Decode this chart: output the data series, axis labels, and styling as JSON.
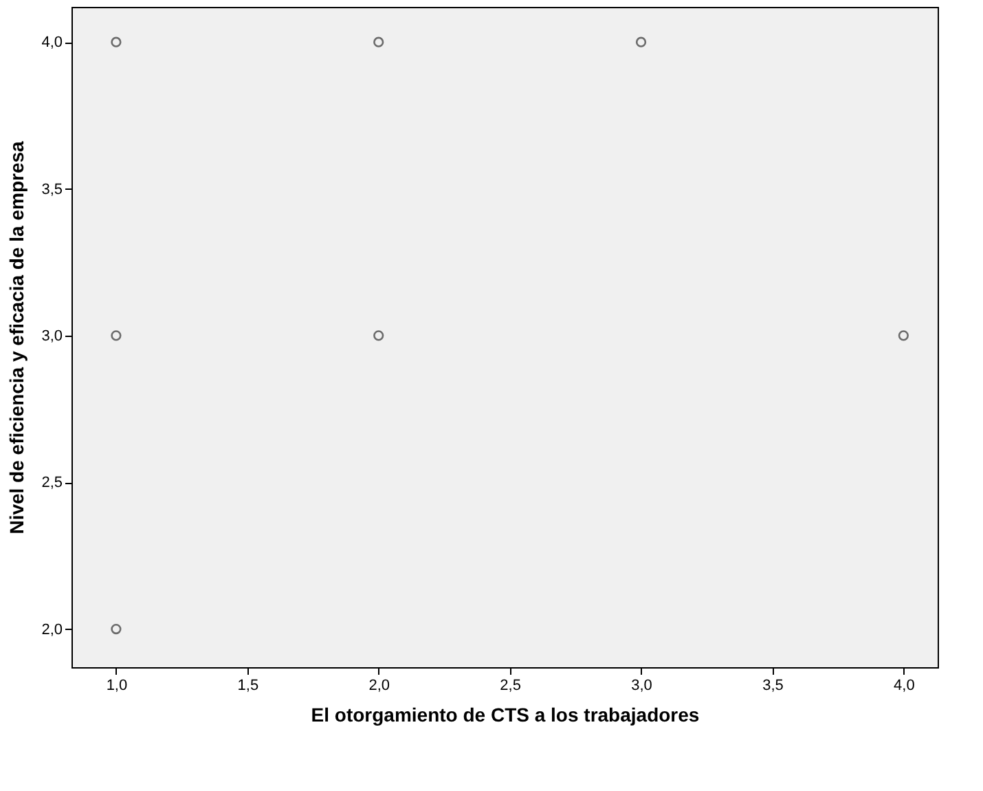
{
  "chart_data": {
    "type": "scatter",
    "xlabel": "El otorgamiento de CTS a los trabajadores",
    "ylabel": "Nivel de eficiencia y eficacia de la empresa",
    "x": [
      1,
      2,
      3,
      1,
      2,
      4,
      1
    ],
    "series": [
      {
        "color": "#333333",
        "values": [
          4,
          4,
          4,
          3,
          3,
          3,
          2
        ]
      }
    ],
    "marker": "circle",
    "grid": false,
    "xlim": [
      0.83,
      4.13
    ],
    "ylim": [
      1.87,
      4.12
    ],
    "xticks": [
      {
        "value": 1,
        "label": "1,0"
      },
      {
        "value": 1.5,
        "label": "1,5"
      },
      {
        "value": 2,
        "label": "2,0"
      },
      {
        "value": 2.5,
        "label": "2,5"
      },
      {
        "value": 3,
        "label": "3,0"
      },
      {
        "value": 3.5,
        "label": "3,5"
      },
      {
        "value": 4,
        "label": "4,0"
      }
    ],
    "yticks": [
      {
        "value": 2,
        "label": "2,0"
      },
      {
        "value": 2.5,
        "label": "2,5"
      },
      {
        "value": 3,
        "label": "3,0"
      },
      {
        "value": 3.5,
        "label": "3,5"
      },
      {
        "value": 4,
        "label": "4,0"
      }
    ]
  }
}
